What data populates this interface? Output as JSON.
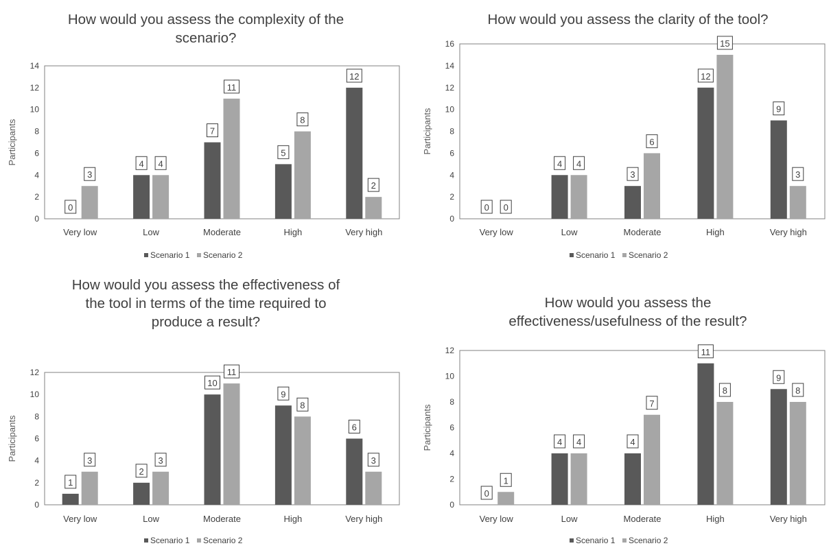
{
  "colors": {
    "scenario1": "#595959",
    "scenario2": "#a6a6a6",
    "frame": "#808080"
  },
  "chart_data": [
    {
      "type": "bar",
      "title": "How would you assess the complexity of the scenario?",
      "title_lines": [
        "How would you assess the complexity of the",
        "scenario?"
      ],
      "ylabel": "Participants",
      "xlabel": "",
      "ylim": [
        0,
        14
      ],
      "yticks": [
        0,
        2,
        4,
        6,
        8,
        10,
        12,
        14
      ],
      "categories": [
        "Very low",
        "Low",
        "Moderate",
        "High",
        "Very high"
      ],
      "series": [
        {
          "name": "Scenario 1",
          "values": [
            0,
            4,
            7,
            5,
            12
          ]
        },
        {
          "name": "Scenario 2",
          "values": [
            3,
            4,
            11,
            8,
            2
          ]
        }
      ],
      "legend_position": "bottom",
      "grid": false
    },
    {
      "type": "bar",
      "title": "How would you assess the clarity of the tool?",
      "title_lines": [
        "How would you assess the clarity of the tool?"
      ],
      "ylabel": "Participants",
      "xlabel": "",
      "ylim": [
        0,
        16
      ],
      "yticks": [
        0,
        2,
        4,
        6,
        8,
        10,
        12,
        14,
        16
      ],
      "categories": [
        "Very low",
        "Low",
        "Moderate",
        "High",
        "Very high"
      ],
      "series": [
        {
          "name": "Scenario 1",
          "values": [
            0,
            4,
            3,
            12,
            9
          ]
        },
        {
          "name": "Scenario 2",
          "values": [
            0,
            4,
            6,
            15,
            3
          ]
        }
      ],
      "legend_position": "bottom",
      "grid": false
    },
    {
      "type": "bar",
      "title": "How would you assess the effectiveness of the tool in terms of the time required to produce a result?",
      "title_lines": [
        "How would you assess the effectiveness of",
        "the tool in terms of the time required to",
        "produce a result?"
      ],
      "ylabel": "Participants",
      "xlabel": "",
      "ylim": [
        0,
        12
      ],
      "yticks": [
        0,
        2,
        4,
        6,
        8,
        10,
        12
      ],
      "categories": [
        "Very low",
        "Low",
        "Moderate",
        "High",
        "Very high"
      ],
      "series": [
        {
          "name": "Scenario 1",
          "values": [
            1,
            2,
            10,
            9,
            6
          ]
        },
        {
          "name": "Scenario 2",
          "values": [
            3,
            3,
            11,
            8,
            3
          ]
        }
      ],
      "legend_position": "bottom",
      "grid": false
    },
    {
      "type": "bar",
      "title": "How would you assess the effectiveness/usefulness of the result?",
      "title_lines": [
        "How would you assess the",
        "effectiveness/usefulness of the result?"
      ],
      "ylabel": "Participants",
      "xlabel": "",
      "ylim": [
        0,
        12
      ],
      "yticks": [
        0,
        2,
        4,
        6,
        8,
        10,
        12
      ],
      "categories": [
        "Very low",
        "Low",
        "Moderate",
        "High",
        "Very high"
      ],
      "series": [
        {
          "name": "Scenario 1",
          "values": [
            0,
            4,
            4,
            11,
            9
          ]
        },
        {
          "name": "Scenario 2",
          "values": [
            1,
            4,
            7,
            8,
            8
          ]
        }
      ],
      "legend_position": "bottom",
      "grid": false
    }
  ]
}
